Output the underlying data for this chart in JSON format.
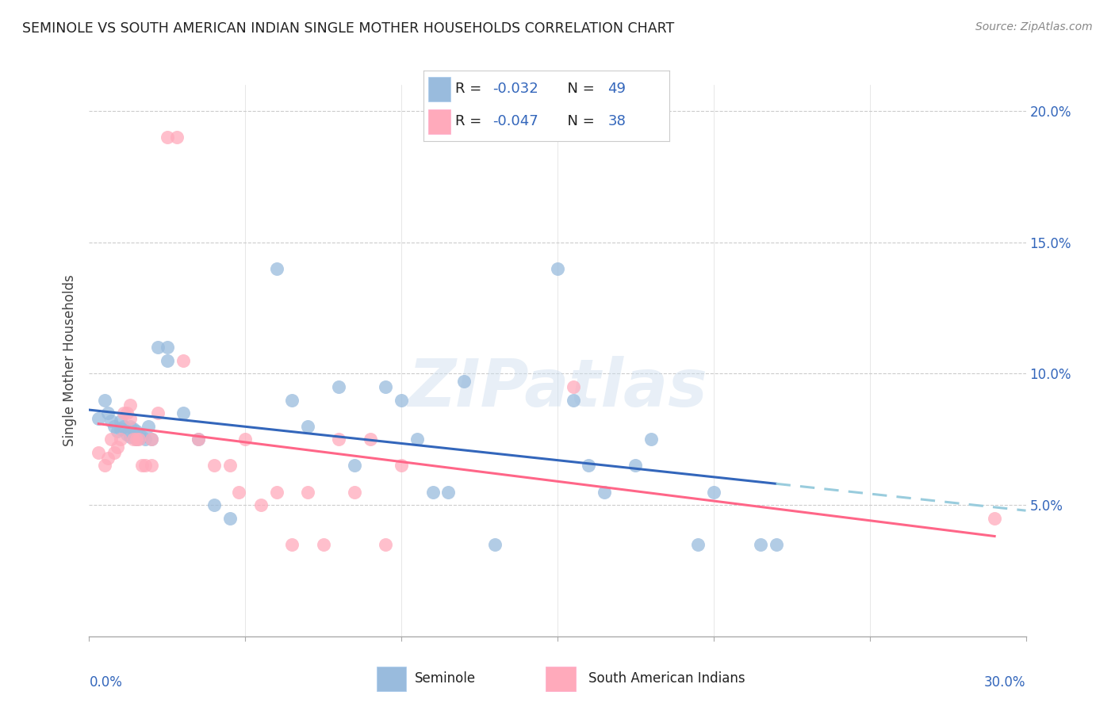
{
  "title": "SEMINOLE VS SOUTH AMERICAN INDIAN SINGLE MOTHER HOUSEHOLDS CORRELATION CHART",
  "source": "Source: ZipAtlas.com",
  "ylabel": "Single Mother Households",
  "xlim": [
    0.0,
    0.3
  ],
  "ylim": [
    0.0,
    0.21
  ],
  "yticks": [
    0.05,
    0.1,
    0.15,
    0.2
  ],
  "ytick_labels": [
    "5.0%",
    "10.0%",
    "15.0%",
    "20.0%"
  ],
  "blue_color": "#99BBDD",
  "pink_color": "#FFAABB",
  "trend_blue": "#3366BB",
  "trend_pink": "#FF6688",
  "trend_blue_dashed": "#99CCDD",
  "seminole_x": [
    0.003,
    0.005,
    0.006,
    0.007,
    0.008,
    0.009,
    0.01,
    0.01,
    0.011,
    0.012,
    0.013,
    0.013,
    0.014,
    0.015,
    0.015,
    0.016,
    0.017,
    0.018,
    0.019,
    0.02,
    0.022,
    0.025,
    0.025,
    0.03,
    0.035,
    0.04,
    0.045,
    0.06,
    0.065,
    0.07,
    0.08,
    0.085,
    0.095,
    0.1,
    0.105,
    0.11,
    0.115,
    0.12,
    0.13,
    0.15,
    0.155,
    0.16,
    0.165,
    0.175,
    0.18,
    0.195,
    0.2,
    0.215,
    0.22
  ],
  "seminole_y": [
    0.083,
    0.09,
    0.085,
    0.082,
    0.08,
    0.078,
    0.082,
    0.079,
    0.08,
    0.077,
    0.076,
    0.08,
    0.079,
    0.078,
    0.075,
    0.077,
    0.076,
    0.075,
    0.08,
    0.075,
    0.11,
    0.105,
    0.11,
    0.085,
    0.075,
    0.05,
    0.045,
    0.14,
    0.09,
    0.08,
    0.095,
    0.065,
    0.095,
    0.09,
    0.075,
    0.055,
    0.055,
    0.097,
    0.035,
    0.14,
    0.09,
    0.065,
    0.055,
    0.065,
    0.075,
    0.035,
    0.055,
    0.035,
    0.035
  ],
  "sai_x": [
    0.003,
    0.005,
    0.006,
    0.007,
    0.008,
    0.009,
    0.01,
    0.011,
    0.012,
    0.013,
    0.013,
    0.014,
    0.015,
    0.016,
    0.017,
    0.018,
    0.02,
    0.02,
    0.022,
    0.025,
    0.028,
    0.03,
    0.035,
    0.04,
    0.045,
    0.048,
    0.05,
    0.055,
    0.06,
    0.065,
    0.07,
    0.075,
    0.08,
    0.085,
    0.09,
    0.095,
    0.1,
    0.155,
    0.29
  ],
  "sai_y": [
    0.07,
    0.065,
    0.068,
    0.075,
    0.07,
    0.072,
    0.075,
    0.085,
    0.085,
    0.088,
    0.083,
    0.075,
    0.075,
    0.075,
    0.065,
    0.065,
    0.075,
    0.065,
    0.085,
    0.19,
    0.19,
    0.105,
    0.075,
    0.065,
    0.065,
    0.055,
    0.075,
    0.05,
    0.055,
    0.035,
    0.055,
    0.035,
    0.075,
    0.055,
    0.075,
    0.035,
    0.065,
    0.095,
    0.045
  ],
  "watermark": "ZIPatlas",
  "background_color": "#FFFFFF",
  "grid_color": "#CCCCCC",
  "legend_text_color": "#333333",
  "legend_value_color": "#3366BB",
  "source_color": "#888888"
}
